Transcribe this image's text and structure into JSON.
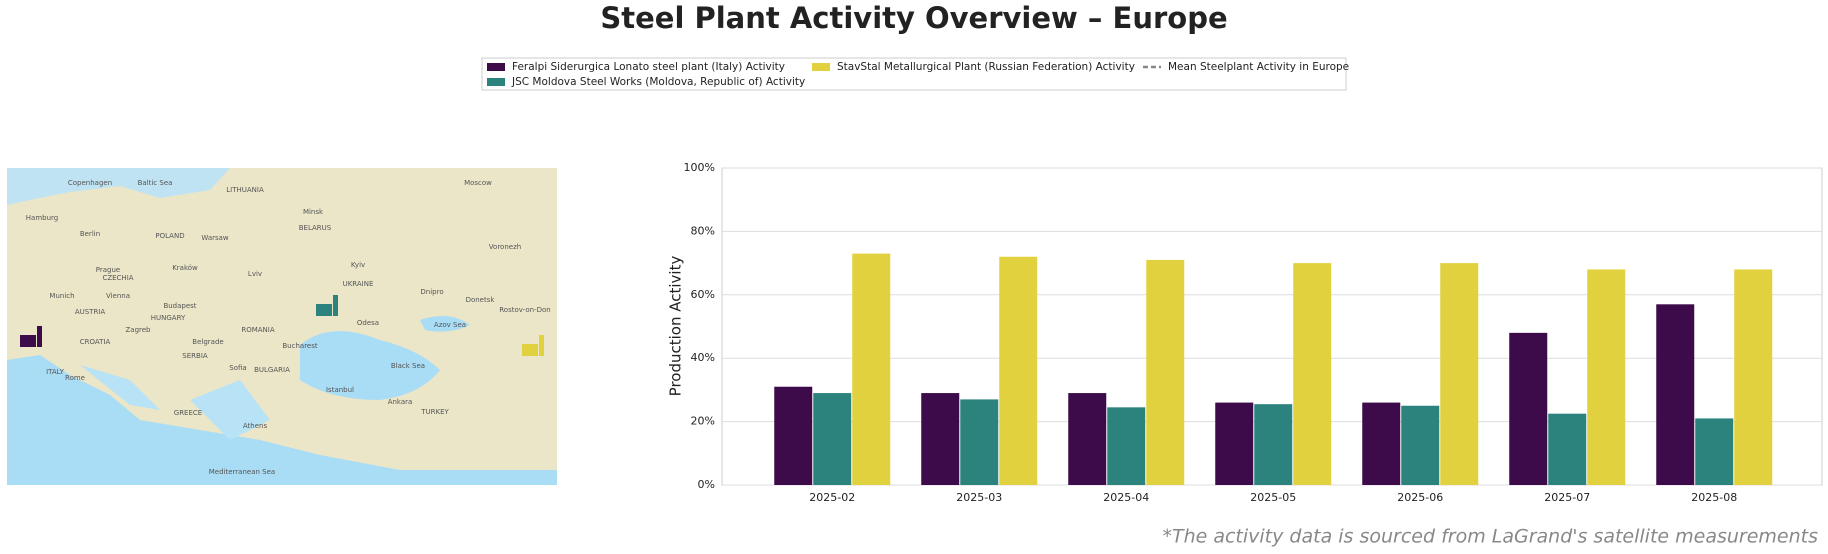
{
  "chart_data": {
    "type": "bar",
    "title": "Steel Plant Activity Overview – Europe",
    "ylabel": "Production Activity",
    "footnote": "*The activity data is sourced from LaGrand's satellite measurements",
    "categories": [
      "2025-02",
      "2025-03",
      "2025-04",
      "2025-05",
      "2025-06",
      "2025-07",
      "2025-08"
    ],
    "series": [
      {
        "name": "Feralpi Siderurgica Lonato steel plant (Italy) Activity",
        "color": "#3d0b4a",
        "values": [
          31,
          29,
          29,
          26,
          26,
          48,
          57
        ]
      },
      {
        "name": "JSC Moldova Steel Works (Moldova, Republic of) Activity",
        "color": "#2c837e",
        "values": [
          29,
          27,
          24.5,
          25.5,
          25,
          22.5,
          21
        ]
      },
      {
        "name": "StavStal Metallurgical Plant (Russian Federation) Activity",
        "color": "#e2d13e",
        "values": [
          73,
          72,
          71,
          70,
          70,
          68,
          68
        ]
      },
      {
        "name": "Mean Steelplant Activity in Europe",
        "color": "#888888",
        "line_style": "dashed",
        "values": [
          null,
          null,
          null,
          null,
          null,
          null,
          null
        ]
      }
    ],
    "ylim": [
      0,
      100
    ],
    "yticks": [
      {
        "value": 0,
        "label": "0%"
      },
      {
        "value": 20,
        "label": "20%"
      },
      {
        "value": 40,
        "label": "40%"
      },
      {
        "value": 60,
        "label": "60%"
      },
      {
        "value": 80,
        "label": "80%"
      },
      {
        "value": 100,
        "label": "100%"
      }
    ],
    "grid": true,
    "legend": "top",
    "map_labels": [
      "Copenhagen",
      "Baltic Sea",
      "LITHUANIA",
      "Moscow",
      "Hamburg",
      "Berlin",
      "POLAND",
      "Warsaw",
      "Minsk",
      "BELARUS",
      "Prague",
      "CZECHIA",
      "Kraków",
      "Lviv",
      "Kyiv",
      "UKRAINE",
      "Vienna",
      "Munich",
      "AUSTRIA",
      "HUNGARY",
      "Budapest",
      "ROMANIA",
      "Bucharest",
      "Belgrade",
      "SERBIA",
      "ITALY",
      "Rome",
      "Black Sea",
      "Odesa",
      "Azov Sea",
      "Istanbul",
      "TURKEY",
      "Ankara",
      "GREECE",
      "Athens",
      "Mediterranean Sea",
      "Voronezh",
      "Dnipro",
      "Donetsk",
      "Rostov-on-Don",
      "Sofia",
      "BULGARIA",
      "Zagreb",
      "CROATIA"
    ]
  }
}
